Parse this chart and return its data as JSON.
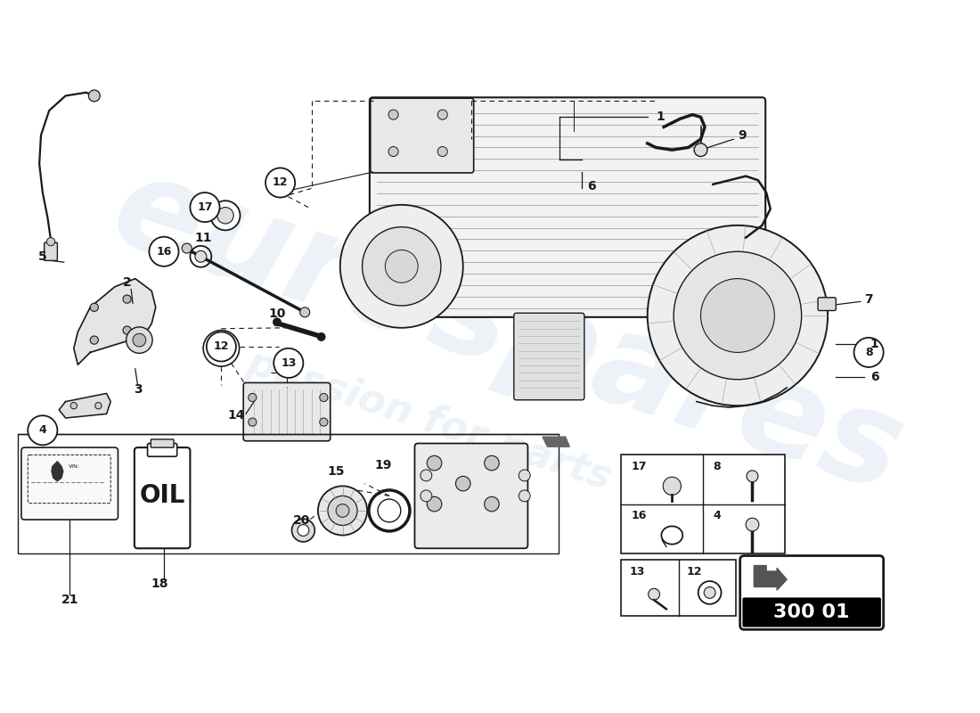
{
  "background_color": "#ffffff",
  "line_color": "#1a1a1a",
  "diagram_code": "300 01",
  "watermark_text1": "eurospares",
  "watermark_text2": "a passion for parts",
  "wm_color": "#c8dce8",
  "wm_alpha": 0.35,
  "label_positions": {
    "1a": [
      680,
      108,
      "1"
    ],
    "1b": [
      1055,
      385,
      "1"
    ],
    "2": [
      155,
      315,
      "2"
    ],
    "3": [
      168,
      438,
      "3"
    ],
    "4": [
      52,
      490,
      "4"
    ],
    "5": [
      52,
      285,
      "5"
    ],
    "6a": [
      710,
      195,
      "6"
    ],
    "6b": [
      1055,
      435,
      "6"
    ],
    "7": [
      1060,
      335,
      "7"
    ],
    "8": [
      1060,
      395,
      "8"
    ],
    "9": [
      895,
      148,
      "9"
    ],
    "10": [
      338,
      352,
      "10"
    ],
    "11": [
      248,
      258,
      "11"
    ],
    "12a": [
      342,
      188,
      "12"
    ],
    "12b": [
      270,
      382,
      "12"
    ],
    "13": [
      352,
      408,
      "13"
    ],
    "14": [
      288,
      470,
      "14"
    ],
    "15": [
      410,
      545,
      "15"
    ],
    "16": [
      198,
      272,
      "16"
    ],
    "17": [
      235,
      210,
      "17"
    ],
    "18": [
      195,
      680,
      "18"
    ],
    "19": [
      468,
      538,
      "19"
    ],
    "20": [
      368,
      598,
      "20"
    ],
    "21": [
      65,
      690,
      "21"
    ]
  }
}
